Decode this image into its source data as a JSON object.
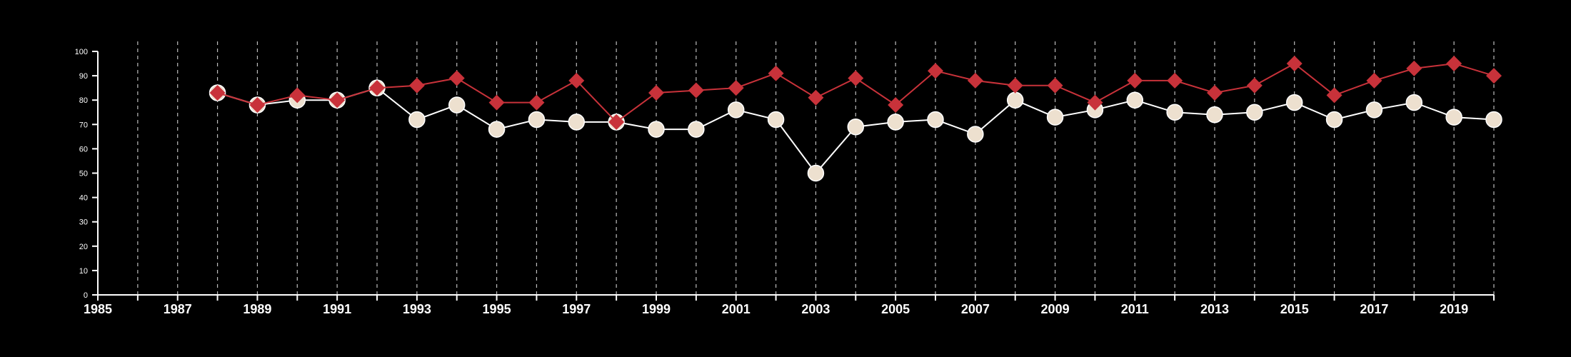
{
  "chart_data": {
    "type": "line",
    "title": "",
    "xlabel": "",
    "ylabel": "",
    "xlim": [
      1985,
      2020
    ],
    "ylim": [
      0,
      100
    ],
    "x_ticks": [
      1985,
      1987,
      1989,
      1991,
      1993,
      1995,
      1997,
      1999,
      2001,
      2003,
      2005,
      2007,
      2009,
      2011,
      2013,
      2015,
      2017,
      2019
    ],
    "y_ticks": [
      0,
      10,
      20,
      30,
      40,
      50,
      60,
      70,
      80,
      90,
      100
    ],
    "grid": "vertical dashed lines at every year",
    "legend": "none",
    "x": [
      1988,
      1989,
      1990,
      1991,
      1992,
      1993,
      1994,
      1995,
      1996,
      1997,
      1998,
      1999,
      2000,
      2001,
      2002,
      2003,
      2004,
      2005,
      2006,
      2007,
      2008,
      2009,
      2010,
      2011,
      2012,
      2013,
      2014,
      2015,
      2016,
      2017,
      2018,
      2019,
      2020
    ],
    "series": [
      {
        "color": "#ede0cf",
        "line_color": "#ffffff",
        "marker": "circle",
        "values": [
          83,
          78,
          80,
          80,
          85,
          72,
          78,
          68,
          72,
          71,
          71,
          68,
          68,
          76,
          72,
          50,
          69,
          71,
          72,
          66,
          80,
          73,
          76,
          80,
          75,
          74,
          75,
          79,
          72,
          76,
          79,
          73,
          72
        ]
      },
      {
        "color": "#c8323a",
        "line_color": "#c8323a",
        "marker": "diamond",
        "values": [
          83,
          78,
          82,
          80,
          85,
          86,
          89,
          79,
          79,
          88,
          71,
          83,
          84,
          85,
          91,
          81,
          89,
          78,
          92,
          88,
          86,
          86,
          79,
          88,
          88,
          83,
          86,
          95,
          82,
          88,
          93,
          95,
          90
        ]
      }
    ]
  }
}
